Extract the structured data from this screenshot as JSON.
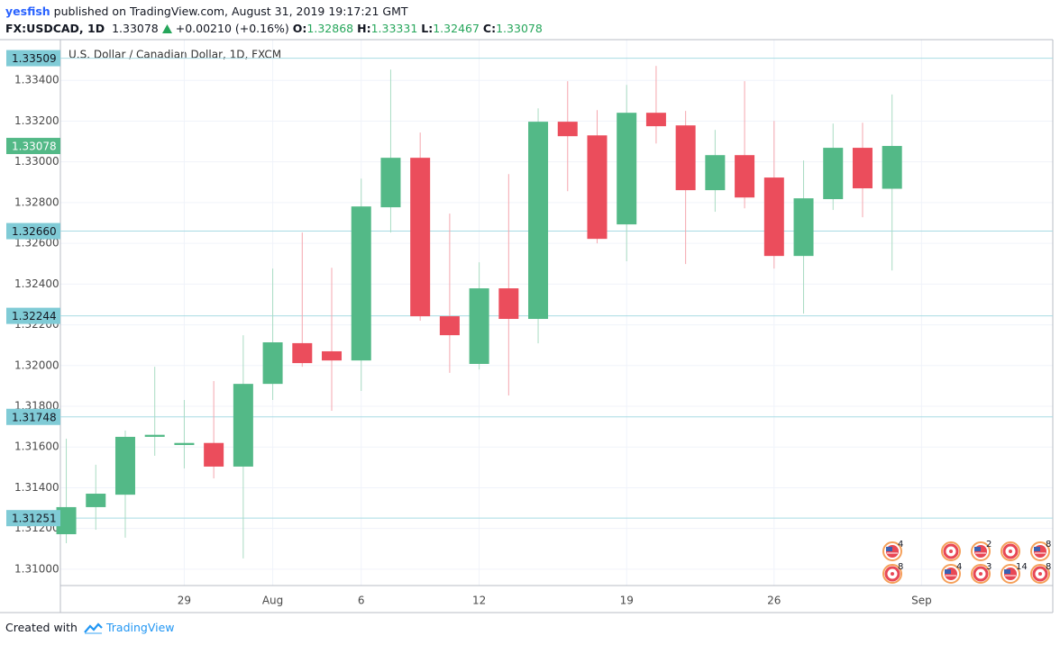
{
  "header": {
    "author": "yesfish",
    "published": "published on TradingView.com, August 31, 2019 19:17:21 GMT",
    "symbol": "FX:USDCAD, 1D",
    "last": "1.33078",
    "change": "+0.00210 (+0.16%)",
    "ohlc": [
      {
        "label": "O:",
        "value": "1.32868"
      },
      {
        "label": "H:",
        "value": "1.33331"
      },
      {
        "label": "L:",
        "value": "1.32467"
      },
      {
        "label": "C:",
        "value": "1.33078"
      }
    ]
  },
  "chart_data": {
    "type": "candlestick",
    "title": "U.S. Dollar / Canadian Dollar, 1D, FXCM",
    "x": [
      0,
      1,
      2,
      3,
      4,
      5,
      6,
      7,
      8,
      9,
      10,
      11,
      12,
      13,
      14,
      15,
      16,
      17,
      18,
      19,
      20,
      21,
      22,
      23,
      24,
      25,
      26,
      27,
      28
    ],
    "open": [
      1.31172,
      1.31305,
      1.31366,
      1.3165,
      1.3161,
      1.3162,
      1.31504,
      1.3191,
      1.3211,
      1.3207,
      1.32025,
      1.32777,
      1.3302,
      1.32242,
      1.32008,
      1.32379,
      1.32229,
      1.33197,
      1.3313,
      1.32693,
      1.33241,
      1.33179,
      1.32861,
      1.33033,
      1.32923,
      1.32538,
      1.32817,
      1.33069,
      1.32868
    ],
    "high": [
      1.31641,
      1.31513,
      1.31681,
      1.31994,
      1.31831,
      1.31924,
      1.32149,
      1.32476,
      1.32653,
      1.3248,
      1.32918,
      1.33453,
      1.33144,
      1.32746,
      1.32507,
      1.3294,
      1.33263,
      1.33396,
      1.33254,
      1.33378,
      1.33471,
      1.3325,
      1.33157,
      1.33396,
      1.33201,
      1.33007,
      1.33188,
      1.33192,
      1.33331
    ],
    "low": [
      1.31128,
      1.31194,
      1.31155,
      1.31557,
      1.31495,
      1.31446,
      1.31053,
      1.31831,
      1.31994,
      1.31778,
      1.31875,
      1.32653,
      1.3222,
      1.31964,
      1.31981,
      1.31853,
      1.32109,
      1.32856,
      1.326,
      1.32512,
      1.3309,
      1.32498,
      1.32755,
      1.32772,
      1.32476,
      1.32255,
      1.32764,
      1.32728,
      1.32467
    ],
    "close": [
      1.31305,
      1.31371,
      1.3165,
      1.3166,
      1.3162,
      1.31504,
      1.3191,
      1.32114,
      1.32012,
      1.32025,
      1.32781,
      1.3302,
      1.32242,
      1.32149,
      1.32379,
      1.32229,
      1.33197,
      1.33126,
      1.32622,
      1.33241,
      1.33175,
      1.32861,
      1.33033,
      1.32825,
      1.32538,
      1.32821,
      1.33069,
      1.3287,
      1.33078
    ],
    "up_color": "#53b987",
    "down_color": "#eb4d5c",
    "up_wick_color": "#a9dcc3",
    "down_wick_color": "#f5a6ae",
    "xlim": [
      -0.2,
      33.45
    ],
    "ylim": [
      1.3092,
      1.336
    ],
    "xticks": [
      {
        "value": 4,
        "label": "29"
      },
      {
        "value": 7,
        "label": "Aug"
      },
      {
        "value": 10,
        "label": "6"
      },
      {
        "value": 14,
        "label": "12"
      },
      {
        "value": 19,
        "label": "19"
      },
      {
        "value": 24,
        "label": "26"
      },
      {
        "value": 29,
        "label": "Sep"
      }
    ],
    "yticks": [
      {
        "value": 1.31,
        "label": "1.31000"
      },
      {
        "value": 1.312,
        "label": "1.31200"
      },
      {
        "value": 1.314,
        "label": "1.31400"
      },
      {
        "value": 1.316,
        "label": "1.31600"
      },
      {
        "value": 1.318,
        "label": "1.31800"
      },
      {
        "value": 1.32,
        "label": "1.32000"
      },
      {
        "value": 1.322,
        "label": "1.32200"
      },
      {
        "value": 1.324,
        "label": "1.32400"
      },
      {
        "value": 1.326,
        "label": "1.32600"
      },
      {
        "value": 1.328,
        "label": "1.32800"
      },
      {
        "value": 1.33,
        "label": "1.33000"
      },
      {
        "value": 1.332,
        "label": "1.33200"
      },
      {
        "value": 1.334,
        "label": "1.33400"
      }
    ],
    "grid": true,
    "levels": [
      1.33509,
      {
        "value": 1.3266,
        "label": "1.32660"
      },
      1.32244,
      1.31748,
      1.31251
    ],
    "level_color": "#a8dbe3",
    "last_price": 1.33078,
    "events": {
      "top": [
        4,
        null,
        2,
        null,
        8
      ],
      "bottom": [
        8,
        4,
        3,
        14,
        8
      ]
    }
  },
  "footer": {
    "created": "Created with",
    "brand": "TradingView"
  }
}
